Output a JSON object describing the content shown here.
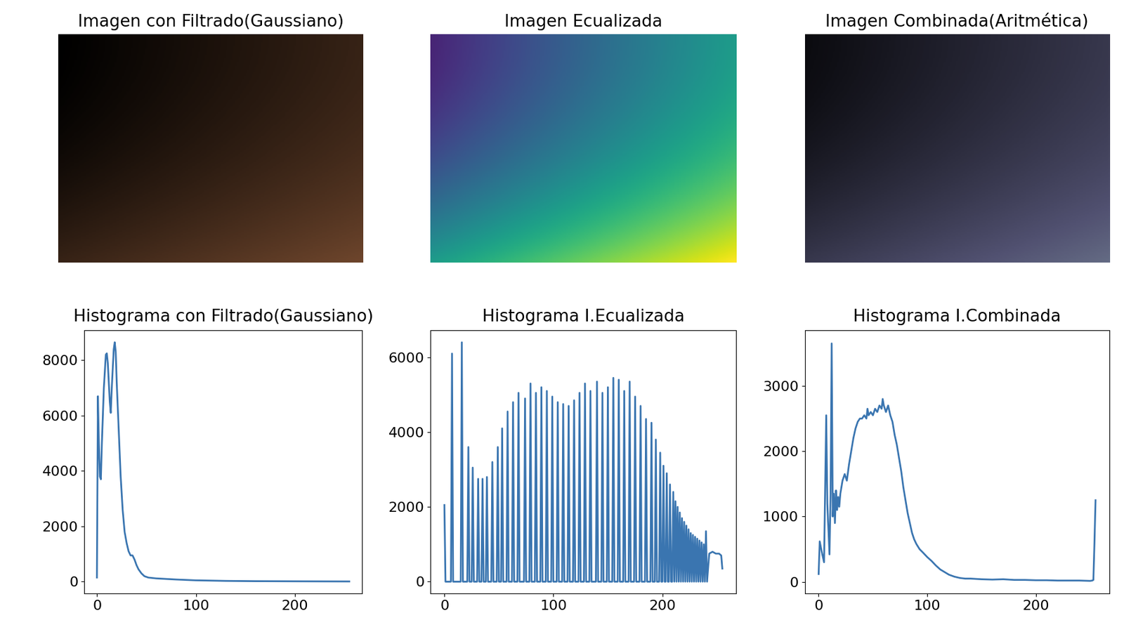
{
  "chart_data": [
    {
      "type": "image",
      "title": "Imagen con Filtrado(Gaussiano)"
    },
    {
      "type": "image",
      "title": "Imagen Ecualizada"
    },
    {
      "type": "image",
      "title": "Imagen Combinada(Aritmética)"
    },
    {
      "type": "line",
      "title": "Histograma con Filtrado(Gaussiano)",
      "color": "#3a75b0",
      "x": [
        0,
        1,
        2,
        3,
        4,
        5,
        7,
        9,
        10,
        11,
        13,
        14,
        15,
        17,
        18,
        19,
        20,
        22,
        24,
        26,
        28,
        30,
        32,
        34,
        36,
        38,
        40,
        42,
        45,
        48,
        52,
        60,
        70,
        80,
        100,
        130,
        160,
        200,
        230,
        255
      ],
      "values": [
        150,
        6700,
        5000,
        3800,
        3700,
        5000,
        7000,
        8200,
        8250,
        7900,
        6500,
        6100,
        7000,
        8400,
        8650,
        8300,
        7200,
        5500,
        3800,
        2600,
        1800,
        1400,
        1100,
        950,
        950,
        800,
        600,
        450,
        300,
        200,
        150,
        120,
        100,
        80,
        50,
        30,
        20,
        15,
        12,
        10
      ],
      "xlim": [
        -12.75,
        267.75
      ],
      "xticks": [
        0,
        100,
        200
      ],
      "ylim": [
        -430,
        9080
      ],
      "yticks": [
        0,
        2000,
        4000,
        6000,
        8000
      ]
    },
    {
      "type": "line",
      "title": "Histograma I.Ecualizada",
      "color": "#3a75b0",
      "x": [
        0,
        1,
        6,
        7,
        8,
        15,
        16,
        17,
        21,
        22,
        23,
        25,
        26,
        27,
        30,
        31,
        32,
        34,
        35,
        36,
        38,
        39,
        40,
        43,
        44,
        45,
        48,
        49,
        50,
        52,
        53,
        54,
        57,
        58,
        59,
        62,
        63,
        64,
        67,
        68,
        69,
        73,
        74,
        75,
        78,
        79,
        80,
        83,
        84,
        85,
        88,
        89,
        90,
        93,
        94,
        95,
        98,
        99,
        100,
        103,
        104,
        105,
        108,
        109,
        110,
        113,
        114,
        115,
        118,
        119,
        120,
        123,
        124,
        125,
        128,
        129,
        130,
        133,
        134,
        135,
        139,
        140,
        141,
        144,
        145,
        146,
        149,
        150,
        151,
        154,
        155,
        156,
        159,
        160,
        161,
        164,
        165,
        166,
        169,
        170,
        171,
        174,
        175,
        176,
        179,
        180,
        181,
        184,
        185,
        186,
        189,
        190,
        191,
        193,
        194,
        195,
        197,
        198,
        199,
        200,
        201,
        202,
        203,
        204,
        205,
        206,
        207,
        208,
        209,
        210,
        211,
        212,
        213,
        214,
        215,
        216,
        217,
        218,
        219,
        220,
        221,
        222,
        223,
        224,
        225,
        226,
        227,
        228,
        229,
        230,
        231,
        232,
        233,
        234,
        235,
        236,
        237,
        238,
        239,
        240,
        241,
        243,
        246,
        249,
        252,
        254,
        255
      ],
      "values": [
        2050,
        0,
        0,
        6100,
        0,
        0,
        6400,
        0,
        0,
        3600,
        0,
        0,
        3050,
        0,
        0,
        2750,
        0,
        0,
        2750,
        0,
        0,
        2800,
        0,
        0,
        3200,
        0,
        0,
        3600,
        0,
        0,
        4100,
        0,
        0,
        4550,
        0,
        0,
        4800,
        0,
        0,
        5050,
        0,
        0,
        4900,
        0,
        0,
        5300,
        0,
        0,
        5050,
        0,
        0,
        5200,
        0,
        0,
        5100,
        0,
        0,
        4950,
        0,
        0,
        4800,
        0,
        0,
        4750,
        0,
        0,
        4700,
        0,
        0,
        4850,
        0,
        0,
        5050,
        0,
        0,
        5300,
        0,
        0,
        5100,
        0,
        0,
        5350,
        0,
        0,
        5050,
        0,
        0,
        5200,
        0,
        0,
        5450,
        0,
        0,
        5400,
        0,
        0,
        5100,
        0,
        0,
        5350,
        0,
        0,
        4950,
        0,
        0,
        4700,
        0,
        0,
        4350,
        0,
        0,
        4250,
        0,
        0,
        3800,
        0,
        0,
        3450,
        0,
        0,
        3100,
        0,
        0,
        2900,
        0,
        0,
        2600,
        0,
        0,
        2400,
        0,
        2150,
        0,
        2000,
        0,
        1850,
        0,
        1700,
        0,
        1600,
        0,
        1500,
        0,
        1400,
        0,
        1300,
        0,
        1250,
        0,
        1200,
        0,
        1150,
        0,
        1100,
        0,
        1050,
        0,
        1000,
        0,
        1350,
        0,
        750,
        800,
        750,
        750,
        700,
        350
      ],
      "xlim": [
        -12.75,
        267.75
      ],
      "xticks": [
        0,
        100,
        200
      ],
      "ylim": [
        -320,
        6720
      ],
      "yticks": [
        0,
        2000,
        4000,
        6000
      ]
    },
    {
      "type": "line",
      "title": "Histograma I.Combinada",
      "color": "#3a75b0",
      "x": [
        0,
        1,
        3,
        5,
        7,
        8,
        10,
        11,
        12,
        13,
        14,
        15,
        16,
        17,
        18,
        19,
        20,
        22,
        24,
        26,
        28,
        30,
        32,
        34,
        36,
        38,
        40,
        42,
        44,
        45,
        46,
        48,
        50,
        52,
        54,
        56,
        58,
        59,
        60,
        62,
        64,
        66,
        68,
        70,
        72,
        74,
        76,
        78,
        80,
        82,
        84,
        86,
        88,
        90,
        93,
        96,
        100,
        104,
        108,
        112,
        116,
        120,
        125,
        130,
        135,
        140,
        150,
        160,
        170,
        180,
        190,
        200,
        210,
        220,
        230,
        240,
        250,
        252,
        253,
        254,
        255
      ],
      "values": [
        120,
        620,
        450,
        300,
        2550,
        1200,
        420,
        1350,
        3650,
        1000,
        1350,
        900,
        1400,
        1100,
        1300,
        1150,
        1350,
        1550,
        1650,
        1550,
        1800,
        2000,
        2200,
        2350,
        2450,
        2500,
        2500,
        2550,
        2500,
        2650,
        2550,
        2600,
        2550,
        2650,
        2600,
        2700,
        2650,
        2800,
        2700,
        2600,
        2700,
        2550,
        2450,
        2250,
        2100,
        1900,
        1700,
        1450,
        1250,
        1050,
        900,
        750,
        650,
        580,
        500,
        450,
        380,
        320,
        250,
        190,
        150,
        110,
        80,
        60,
        50,
        50,
        40,
        35,
        40,
        30,
        30,
        25,
        25,
        20,
        20,
        20,
        15,
        20,
        30,
        600,
        1250
      ],
      "xlim": [
        -12.75,
        267.75
      ],
      "xticks": [
        0,
        100,
        200
      ],
      "ylim": [
        -180,
        3850
      ],
      "yticks": [
        0,
        1000,
        2000,
        3000
      ]
    }
  ]
}
